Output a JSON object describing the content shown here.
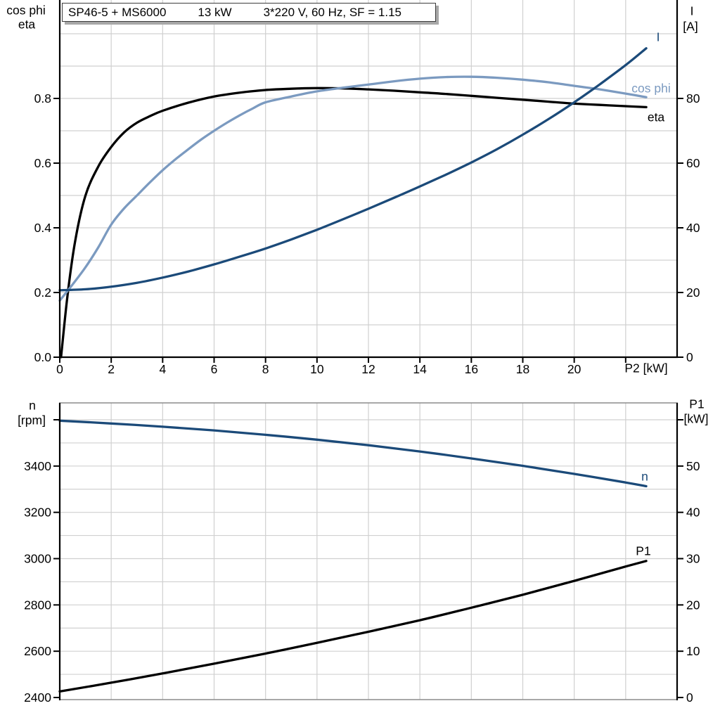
{
  "title": {
    "model": "SP46-5 + MS6000",
    "power": "13 kW",
    "electrical": "3*220 V, 60 Hz, SF = 1.15"
  },
  "colors": {
    "black": "#000000",
    "dark_blue": "#1b4a79",
    "light_blue": "#7b9ac0",
    "grid": "#d0d0d0",
    "frame": "#8c8c8c",
    "axis": "#000000"
  },
  "labels": {
    "top_left_line1": "cos phi",
    "top_left_line2": "eta",
    "top_right_line1": "I",
    "top_right_line2": "[A]",
    "x_axis": "P2 [kW]",
    "curve_I": "I",
    "curve_cosphi": "cos phi",
    "curve_eta": "eta",
    "bottom_left_line1": "n",
    "bottom_left_line2": "[rpm]",
    "bottom_right_line1": "P1",
    "bottom_right_line2": "[kW]",
    "curve_n": "n",
    "curve_P1": "P1"
  },
  "chart_data": [
    {
      "type": "line",
      "title": "SP46-5 + MS6000  13 kW  3*220 V, 60 Hz, SF = 1.15",
      "x_axis": {
        "label": "P2 [kW]",
        "range": [
          0,
          24
        ],
        "grid_step": 2,
        "tick_values": [
          0,
          2,
          4,
          6,
          8,
          10,
          12,
          14,
          16,
          18,
          20
        ],
        "tick_labels": [
          "0",
          "2",
          "4",
          "6",
          "8",
          "10",
          "12",
          "14",
          "16",
          "18",
          "20"
        ]
      },
      "y_left": {
        "label": "cos phi / eta",
        "range": [
          0,
          1.09
        ],
        "grid_step": 0.1,
        "tick_values": [
          0,
          0.2,
          0.4,
          0.6,
          0.8
        ],
        "tick_labels": [
          "0.0",
          "0.2",
          "0.4",
          "0.6",
          "0.8"
        ]
      },
      "y_right": {
        "label": "I [A]",
        "range": [
          0,
          109
        ],
        "grid_step": 10,
        "tick_values": [
          0,
          20,
          40,
          60,
          80
        ],
        "tick_labels": [
          "0",
          "20",
          "40",
          "60",
          "80"
        ]
      },
      "legend_position": "end-of-curve",
      "grid": true,
      "series": [
        {
          "name": "eta",
          "axis": "left",
          "color": "black",
          "points": [
            [
              0.05,
              0
            ],
            [
              0.3,
              0.19
            ],
            [
              0.6,
              0.36
            ],
            [
              1,
              0.5
            ],
            [
              1.5,
              0.59
            ],
            [
              2,
              0.65
            ],
            [
              2.5,
              0.695
            ],
            [
              3,
              0.725
            ],
            [
              3.5,
              0.745
            ],
            [
              4,
              0.762
            ],
            [
              5,
              0.787
            ],
            [
              6,
              0.806
            ],
            [
              7,
              0.818
            ],
            [
              8,
              0.826
            ],
            [
              9,
              0.83
            ],
            [
              10,
              0.832
            ],
            [
              11,
              0.831
            ],
            [
              12,
              0.828
            ],
            [
              13,
              0.824
            ],
            [
              14,
              0.819
            ],
            [
              15,
              0.814
            ],
            [
              16,
              0.808
            ],
            [
              17,
              0.802
            ],
            [
              18,
              0.796
            ],
            [
              19,
              0.79
            ],
            [
              20,
              0.784
            ],
            [
              21,
              0.78
            ],
            [
              22,
              0.776
            ],
            [
              22.8,
              0.773
            ]
          ]
        },
        {
          "name": "cos phi",
          "axis": "left",
          "color": "light_blue",
          "points": [
            [
              0,
              0.175
            ],
            [
              0.5,
              0.225
            ],
            [
              1,
              0.278
            ],
            [
              1.5,
              0.34
            ],
            [
              2,
              0.41
            ],
            [
              2.5,
              0.46
            ],
            [
              3,
              0.5
            ],
            [
              3.5,
              0.54
            ],
            [
              4,
              0.578
            ],
            [
              4.5,
              0.612
            ],
            [
              5,
              0.643
            ],
            [
              5.5,
              0.673
            ],
            [
              6,
              0.7
            ],
            [
              6.5,
              0.725
            ],
            [
              7,
              0.748
            ],
            [
              7.5,
              0.769
            ],
            [
              8,
              0.788
            ],
            [
              9,
              0.806
            ],
            [
              10,
              0.822
            ],
            [
              11,
              0.833
            ],
            [
              12,
              0.843
            ],
            [
              13,
              0.853
            ],
            [
              14,
              0.861
            ],
            [
              15,
              0.866
            ],
            [
              16,
              0.867
            ],
            [
              17,
              0.864
            ],
            [
              18,
              0.858
            ],
            [
              19,
              0.85
            ],
            [
              20,
              0.839
            ],
            [
              21,
              0.828
            ],
            [
              22,
              0.815
            ],
            [
              22.8,
              0.804
            ]
          ]
        },
        {
          "name": "I",
          "axis": "right",
          "color": "dark_blue",
          "points": [
            [
              0,
              20.7
            ],
            [
              1,
              21.0
            ],
            [
              2,
              21.8
            ],
            [
              3,
              23.0
            ],
            [
              4,
              24.6
            ],
            [
              5,
              26.5
            ],
            [
              6,
              28.7
            ],
            [
              7,
              31.1
            ],
            [
              8,
              33.6
            ],
            [
              9,
              36.4
            ],
            [
              10,
              39.4
            ],
            [
              11,
              42.6
            ],
            [
              12,
              45.9
            ],
            [
              13,
              49.3
            ],
            [
              14,
              52.8
            ],
            [
              15,
              56.4
            ],
            [
              16,
              60.2
            ],
            [
              17,
              64.3
            ],
            [
              18,
              68.8
            ],
            [
              19,
              73.6
            ],
            [
              20,
              78.8
            ],
            [
              21,
              84.4
            ],
            [
              22,
              90.3
            ],
            [
              22.8,
              95.5
            ]
          ]
        }
      ]
    },
    {
      "type": "line",
      "title": "Speed and input power vs P2",
      "x_axis": {
        "label": "P2 [kW]",
        "range": [
          0,
          24
        ],
        "grid_step": 2,
        "tick_values": [],
        "tick_labels": []
      },
      "y_left": {
        "label": "n [rpm]",
        "range": [
          2390,
          3675
        ],
        "grid_step": 100,
        "tick_values": [
          2400,
          2600,
          2800,
          3000,
          3200,
          3400
        ],
        "tick_labels": [
          "2400",
          "2600",
          "2800",
          "3000",
          "3200",
          "3400"
        ]
      },
      "y_right": {
        "label": "P1 [kW]",
        "range": [
          0,
          63.5
        ],
        "grid_step": 5,
        "tick_values": [
          0,
          10,
          20,
          30,
          40,
          50
        ],
        "tick_labels": [
          "0",
          "10",
          "20",
          "30",
          "40",
          "50"
        ]
      },
      "legend_position": "end-of-curve",
      "grid": true,
      "series": [
        {
          "name": "n",
          "axis": "left",
          "color": "dark_blue",
          "points": [
            [
              0,
              3596
            ],
            [
              2,
              3584
            ],
            [
              4,
              3570
            ],
            [
              6,
              3554
            ],
            [
              8,
              3535
            ],
            [
              10,
              3514
            ],
            [
              12,
              3490
            ],
            [
              14,
              3463
            ],
            [
              16,
              3433
            ],
            [
              18,
              3401
            ],
            [
              20,
              3366
            ],
            [
              22,
              3329
            ],
            [
              22.8,
              3313
            ]
          ]
        },
        {
          "name": "P1",
          "axis": "right",
          "color": "black",
          "points": [
            [
              0,
              1.3
            ],
            [
              2,
              3.2
            ],
            [
              4,
              5.2
            ],
            [
              6,
              7.3
            ],
            [
              8,
              9.5
            ],
            [
              10,
              11.8
            ],
            [
              12,
              14.2
            ],
            [
              14,
              16.7
            ],
            [
              16,
              19.4
            ],
            [
              18,
              22.2
            ],
            [
              20,
              25.2
            ],
            [
              22,
              28.3
            ],
            [
              22.8,
              29.5
            ]
          ]
        }
      ]
    }
  ]
}
